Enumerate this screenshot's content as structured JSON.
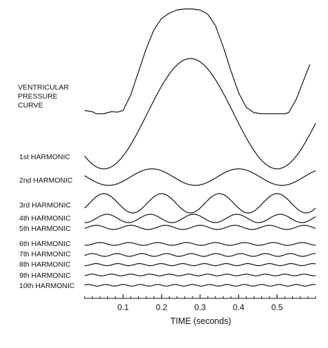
{
  "chart_data": {
    "type": "line",
    "title": "",
    "xlabel": "TIME (seconds)",
    "ylabel": "",
    "xlim": [
      0,
      0.6
    ],
    "x_ticks": [
      "0.1",
      "0.2",
      "0.3",
      "0.4",
      "0.5"
    ],
    "x_tick_values": [
      0.1,
      0.2,
      0.3,
      0.4,
      0.5
    ],
    "x_minor_step": 0.02,
    "grid": false,
    "fundamental_period_s": 0.45,
    "series": [
      {
        "name_lines": [
          "VENTRICULAR",
          "PRESSURE",
          "CURVE"
        ],
        "relative_amplitude": 1.0,
        "points": [
          [
            0.0,
            0.03
          ],
          [
            0.02,
            0.02
          ],
          [
            0.03,
            0.0
          ],
          [
            0.05,
            0.0
          ],
          [
            0.07,
            0.02
          ],
          [
            0.085,
            0.015
          ],
          [
            0.1,
            0.03
          ],
          [
            0.12,
            0.18
          ],
          [
            0.14,
            0.4
          ],
          [
            0.16,
            0.62
          ],
          [
            0.18,
            0.8
          ],
          [
            0.2,
            0.91
          ],
          [
            0.22,
            0.96
          ],
          [
            0.24,
            0.99
          ],
          [
            0.26,
            1.0
          ],
          [
            0.28,
            1.0
          ],
          [
            0.3,
            0.99
          ],
          [
            0.32,
            0.95
          ],
          [
            0.34,
            0.84
          ],
          [
            0.36,
            0.64
          ],
          [
            0.38,
            0.41
          ],
          [
            0.4,
            0.2
          ],
          [
            0.42,
            0.06
          ],
          [
            0.44,
            0.01
          ],
          [
            0.46,
            0.0
          ],
          [
            0.48,
            0.0
          ],
          [
            0.5,
            0.0
          ],
          [
            0.52,
            0.0
          ],
          [
            0.53,
            0.01
          ],
          [
            0.55,
            0.14
          ],
          [
            0.57,
            0.33
          ],
          [
            0.585,
            0.47
          ]
        ]
      },
      {
        "name": "1st HARMONIC",
        "harmonic": 1,
        "relative_amplitude": 0.7,
        "peak_time_s": 0.275
      },
      {
        "name": "2nd HARMONIC",
        "harmonic": 2,
        "relative_amplitude": 0.12,
        "peak_time_s": 0.175
      },
      {
        "name": "3rd HARMONIC",
        "harmonic": 3,
        "relative_amplitude": 0.1,
        "peak_time_s": 0.05
      },
      {
        "name": "4th HARMONIC",
        "harmonic": 4,
        "relative_amplitude": 0.05,
        "peak_time_s": 0.058
      },
      {
        "name": "5th HARMONIC",
        "harmonic": 5,
        "relative_amplitude": 0.025,
        "peak_time_s": 0.03
      },
      {
        "name": "6th HARMONIC",
        "harmonic": 6,
        "relative_amplitude": 0.02,
        "peak_time_s": 0.04
      },
      {
        "name": "7th HARMONIC",
        "harmonic": 7,
        "relative_amplitude": 0.018,
        "peak_time_s": 0.02
      },
      {
        "name": "8th HARMONIC",
        "harmonic": 8,
        "relative_amplitude": 0.012,
        "peak_time_s": 0.03
      },
      {
        "name": "9th HARMONIC",
        "harmonic": 9,
        "relative_amplitude": 0.01,
        "peak_time_s": 0.02
      },
      {
        "name": "10th HARMONIC",
        "harmonic": 10,
        "relative_amplitude": 0.01,
        "peak_time_s": 0.01
      }
    ]
  }
}
